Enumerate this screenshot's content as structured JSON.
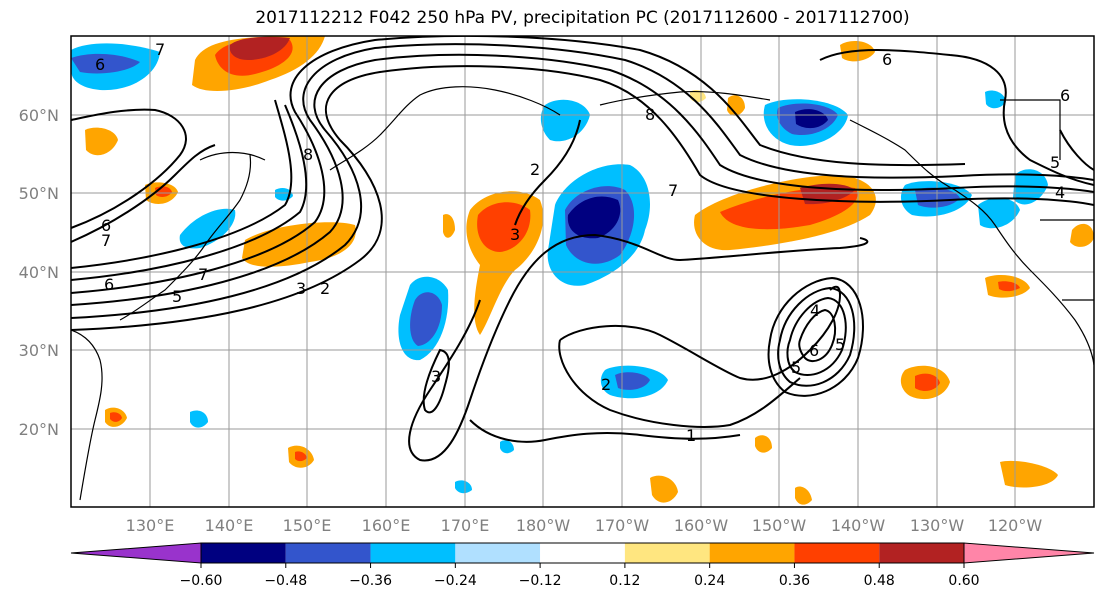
{
  "title": "2017112212 F042 250 hPa PV, precipitation PC (2017112600 - 2017112700)",
  "lat_labels": [
    "60°N",
    "50°N",
    "40°N",
    "30°N",
    "20°N"
  ],
  "lon_labels": [
    "130°E",
    "140°E",
    "150°E",
    "160°E",
    "170°E",
    "180°W",
    "170°W",
    "160°W",
    "150°W",
    "140°W",
    "130°W",
    "120°W"
  ],
  "colorbar": {
    "ticks": [
      "−0.60",
      "−0.48",
      "−0.36",
      "−0.24",
      "−0.12",
      "0.12",
      "0.24",
      "0.36",
      "0.48",
      "0.60"
    ],
    "colors": [
      "#9933cc",
      "#000080",
      "#3355cc",
      "#00bfff",
      "#b0e0ff",
      "#ffffff",
      "#ffe680",
      "#ffa500",
      "#ff4000",
      "#b22222",
      "#ff85a8"
    ]
  },
  "contour_labels": [
    "6",
    "6",
    "7",
    "7",
    "8",
    "8",
    "7",
    "7",
    "6",
    "6",
    "5",
    "5",
    "4",
    "3",
    "2",
    "1",
    "2",
    "3",
    "2",
    "3",
    "4",
    "5",
    "6",
    "6",
    "5"
  ]
}
